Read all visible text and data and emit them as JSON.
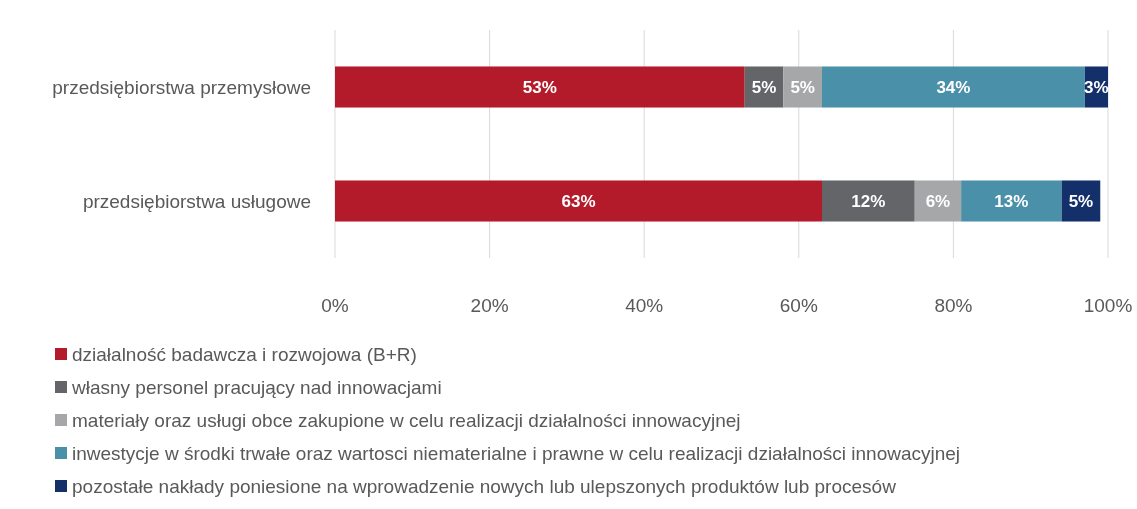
{
  "chart_data": {
    "type": "bar",
    "orientation": "horizontal",
    "stacked": true,
    "categories": [
      "przedsiębiorstwa przemysłowe",
      "przedsiębiorstwa usługowe"
    ],
    "series": [
      {
        "name": "działalność badawcza i rozwojowa (B+R)",
        "color": "#b31b2a",
        "values": [
          53,
          63
        ],
        "value_labels": [
          "53%",
          "63%"
        ]
      },
      {
        "name": "własny personel pracujący nad innowacjami",
        "color": "#636569",
        "values": [
          5,
          12
        ],
        "value_labels": [
          "5%",
          "12%"
        ]
      },
      {
        "name": "materiały oraz usługi obce zakupione w celu realizacji działalności innowacyjnej",
        "color": "#a5a7a9",
        "values": [
          5,
          6
        ],
        "value_labels": [
          "5%",
          "6%"
        ]
      },
      {
        "name": "inwestycje w środki trwałe oraz wartosci niematerialne i prawne w celu realizacji działalności innowacyjnej",
        "color": "#4a90a9",
        "values": [
          34,
          13
        ],
        "value_labels": [
          "34%",
          "13%"
        ]
      },
      {
        "name": "pozostałe nakłady poniesione na wprowadzenie nowych lub ulepszonych produktów lub procesów",
        "color": "#14306b",
        "values": [
          3,
          5
        ],
        "value_labels": [
          "3%",
          "5%"
        ]
      }
    ],
    "xlim": [
      0,
      100
    ],
    "xticks": [
      {
        "value": 0,
        "label": "0%"
      },
      {
        "value": 20,
        "label": "20%"
      },
      {
        "value": 40,
        "label": "40%"
      },
      {
        "value": 60,
        "label": "60%"
      },
      {
        "value": 80,
        "label": "80%"
      },
      {
        "value": 100,
        "label": "100%"
      }
    ],
    "grid": "x",
    "legend": "bottom"
  }
}
